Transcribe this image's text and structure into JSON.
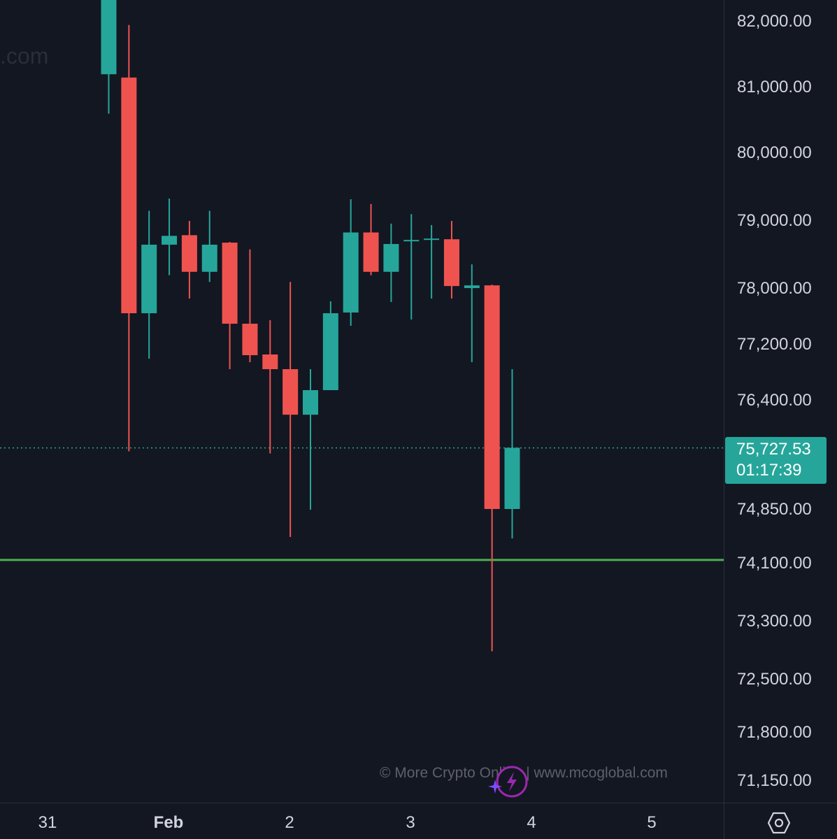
{
  "chart_data": {
    "type": "candlestick",
    "y_axis_ticks": [
      "82,000.00",
      "81,000.00",
      "80,000.00",
      "79,000.00",
      "78,000.00",
      "77,200.00",
      "76,400.00",
      "74,850.00",
      "74,100.00",
      "73,300.00",
      "72,500.00",
      "71,800.00",
      "71,150.00"
    ],
    "x_axis_ticks": [
      {
        "label": "31",
        "bold": false
      },
      {
        "label": "Feb",
        "bold": true
      },
      {
        "label": "2",
        "bold": false
      },
      {
        "label": "3",
        "bold": false
      },
      {
        "label": "4",
        "bold": false
      },
      {
        "label": "5",
        "bold": false
      }
    ],
    "candles": [
      {
        "o": 81200,
        "h": 82500,
        "l": 80600,
        "c": 82500
      },
      {
        "o": 81150,
        "h": 81950,
        "l": 75680,
        "c": 77650
      },
      {
        "o": 77650,
        "h": 79150,
        "l": 77000,
        "c": 78650
      },
      {
        "o": 78650,
        "h": 79330,
        "l": 78200,
        "c": 78780
      },
      {
        "o": 78790,
        "h": 79000,
        "l": 77860,
        "c": 78250
      },
      {
        "o": 78250,
        "h": 79150,
        "l": 78100,
        "c": 78650
      },
      {
        "o": 78680,
        "h": 78690,
        "l": 76850,
        "c": 77500
      },
      {
        "o": 77500,
        "h": 78580,
        "l": 76950,
        "c": 77050
      },
      {
        "o": 77060,
        "h": 77550,
        "l": 75650,
        "c": 76850
      },
      {
        "o": 76850,
        "h": 78100,
        "l": 74470,
        "c": 76200
      },
      {
        "o": 76200,
        "h": 76850,
        "l": 74850,
        "c": 76550
      },
      {
        "o": 76550,
        "h": 77820,
        "l": 76550,
        "c": 77650
      },
      {
        "o": 77660,
        "h": 79320,
        "l": 77470,
        "c": 78830
      },
      {
        "o": 78830,
        "h": 79250,
        "l": 78200,
        "c": 78250
      },
      {
        "o": 78250,
        "h": 78960,
        "l": 77810,
        "c": 78660
      },
      {
        "o": 78700,
        "h": 79100,
        "l": 77560,
        "c": 78720
      },
      {
        "o": 78720,
        "h": 78940,
        "l": 77860,
        "c": 78740
      },
      {
        "o": 78730,
        "h": 79000,
        "l": 77860,
        "c": 78040
      },
      {
        "o": 78010,
        "h": 78360,
        "l": 76950,
        "c": 78050
      },
      {
        "o": 78050,
        "h": 78060,
        "l": 72890,
        "c": 74860
      },
      {
        "o": 74860,
        "h": 76850,
        "l": 74450,
        "c": 75730
      }
    ],
    "current_price": "75,727.53",
    "countdown": "01:17:39",
    "horizontal_line": {
      "price": 74150,
      "color": "#4caf50"
    },
    "colors": {
      "up": "#26a69a",
      "down": "#ef5350",
      "background": "#131722"
    }
  },
  "watermark": {
    "text": "© More Crypto Online   |   www.mcoglobal.com",
    "ghost_text": ".com"
  },
  "icons": {
    "settings": "settings-hexagon-icon",
    "logo": "lightning-logo-icon"
  }
}
